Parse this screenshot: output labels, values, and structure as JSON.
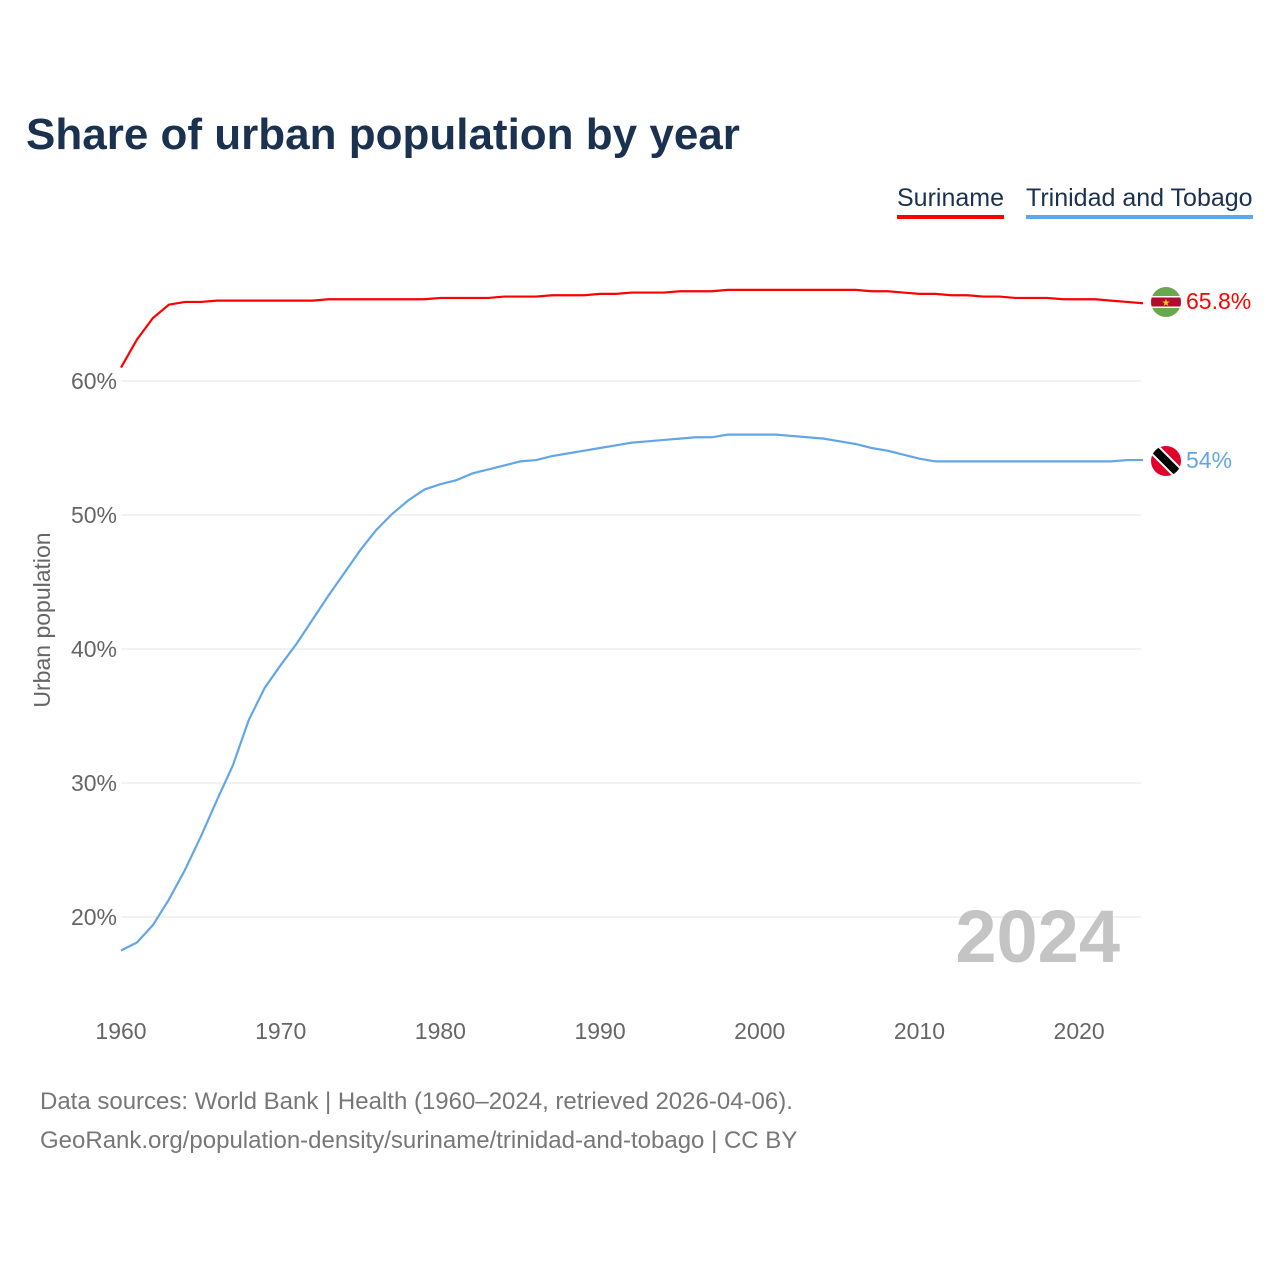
{
  "title": "Share of urban population by year",
  "year_watermark": "2024",
  "footer": {
    "line1": "Data sources: World Bank | Health (1960–2024, retrieved 2026-04-06).",
    "line2": "GeoRank.org/population-density/suriname/trinidad-and-tobago | CC BY"
  },
  "chart_data": {
    "type": "line",
    "title": "Share of urban population by year",
    "xlabel": "",
    "ylabel": "Urban population",
    "xlim": [
      1960,
      2024
    ],
    "ylim": [
      15,
      70
    ],
    "xticks": [
      1960,
      1970,
      1980,
      1990,
      2000,
      2010,
      2020
    ],
    "xtick_labels": [
      "1960",
      "1970",
      "1980",
      "1990",
      "2000",
      "2010",
      "2020"
    ],
    "yticks": [
      20,
      30,
      40,
      50,
      60
    ],
    "ytick_labels": [
      "20%",
      "30%",
      "40%",
      "50%",
      "60%"
    ],
    "grid": true,
    "legend_placement": "top-right",
    "x": [
      1960,
      1961,
      1962,
      1963,
      1964,
      1965,
      1966,
      1967,
      1968,
      1969,
      1970,
      1971,
      1972,
      1973,
      1974,
      1975,
      1976,
      1977,
      1978,
      1979,
      1980,
      1981,
      1982,
      1983,
      1984,
      1985,
      1986,
      1987,
      1988,
      1989,
      1990,
      1991,
      1992,
      1993,
      1994,
      1995,
      1996,
      1997,
      1998,
      1999,
      2000,
      2001,
      2002,
      2003,
      2004,
      2005,
      2006,
      2007,
      2008,
      2009,
      2010,
      2011,
      2012,
      2013,
      2014,
      2015,
      2016,
      2017,
      2018,
      2019,
      2020,
      2021,
      2022,
      2023,
      2024
    ],
    "series": [
      {
        "name": "Suriname",
        "color": "#ff0000",
        "end_label": "65.8%",
        "values": [
          61.0,
          63.1,
          64.7,
          65.7,
          65.9,
          65.9,
          66.0,
          66.0,
          66.0,
          66.0,
          66.0,
          66.0,
          66.0,
          66.1,
          66.1,
          66.1,
          66.1,
          66.1,
          66.1,
          66.1,
          66.2,
          66.2,
          66.2,
          66.2,
          66.3,
          66.3,
          66.3,
          66.4,
          66.4,
          66.4,
          66.5,
          66.5,
          66.6,
          66.6,
          66.6,
          66.7,
          66.7,
          66.7,
          66.8,
          66.8,
          66.8,
          66.8,
          66.8,
          66.8,
          66.8,
          66.8,
          66.8,
          66.7,
          66.7,
          66.6,
          66.5,
          66.5,
          66.4,
          66.4,
          66.3,
          66.3,
          66.2,
          66.2,
          66.2,
          66.1,
          66.1,
          66.1,
          66.0,
          65.9,
          65.8
        ]
      },
      {
        "name": "Trinidad and Tobago",
        "color": "#63a6e8",
        "end_label": "54%",
        "values": [
          17.5,
          18.1,
          19.4,
          21.3,
          23.5,
          26.0,
          28.7,
          31.3,
          34.7,
          37.1,
          38.8,
          40.4,
          42.2,
          44.0,
          45.7,
          47.4,
          48.9,
          50.1,
          51.1,
          51.9,
          52.3,
          52.6,
          53.1,
          53.4,
          53.7,
          54.0,
          54.1,
          54.4,
          54.6,
          54.8,
          55.0,
          55.2,
          55.4,
          55.5,
          55.6,
          55.7,
          55.8,
          55.8,
          56.0,
          56.0,
          56.0,
          56.0,
          55.9,
          55.8,
          55.7,
          55.5,
          55.3,
          55.0,
          54.8,
          54.5,
          54.2,
          54.0,
          54.0,
          54.0,
          54.0,
          54.0,
          54.0,
          54.0,
          54.0,
          54.0,
          54.0,
          54.0,
          54.0,
          54.1,
          54.1
        ]
      }
    ]
  }
}
